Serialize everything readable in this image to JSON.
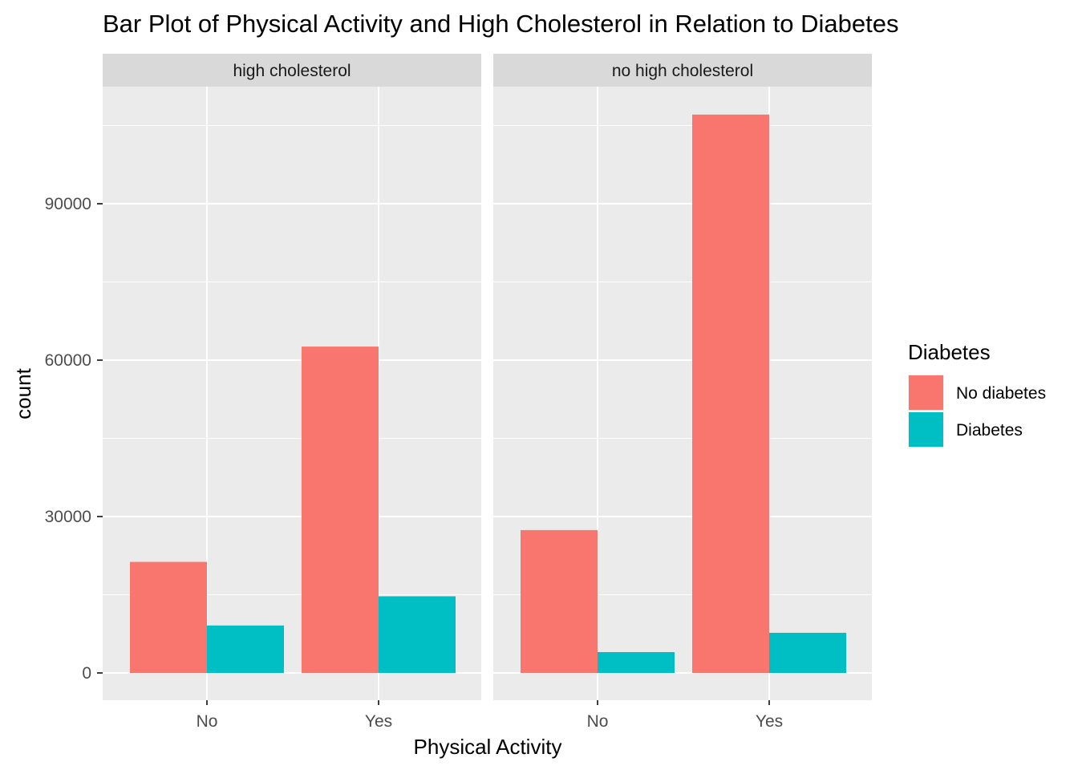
{
  "chart_data": {
    "type": "bar",
    "title": "Bar Plot of Physical Activity  and High Cholesterol in Relation to Diabetes",
    "xlabel": "Physical Activity",
    "ylabel": "count",
    "ylim": [
      -7000,
      111000
    ],
    "yticks": [
      0,
      30000,
      60000,
      90000
    ],
    "ytick_labels": [
      "0",
      "30000",
      "60000",
      "90000"
    ],
    "grid": true,
    "legend": {
      "title": "Diabetes",
      "position": "right"
    },
    "facets": [
      {
        "label": "high cholesterol",
        "categories": [
          "No",
          "Yes"
        ],
        "series": [
          {
            "name": "No diabetes",
            "color": "#F8766D",
            "values": [
              21300,
              62600
            ]
          },
          {
            "name": "Diabetes",
            "color": "#00BFC4",
            "values": [
              9100,
              14700
            ]
          }
        ]
      },
      {
        "label": "no high cholesterol",
        "categories": [
          "No",
          "Yes"
        ],
        "series": [
          {
            "name": "No diabetes",
            "color": "#F8766D",
            "values": [
              27400,
              107100
            ]
          },
          {
            "name": "Diabetes",
            "color": "#00BFC4",
            "values": [
              4000,
              7700
            ]
          }
        ]
      }
    ]
  }
}
